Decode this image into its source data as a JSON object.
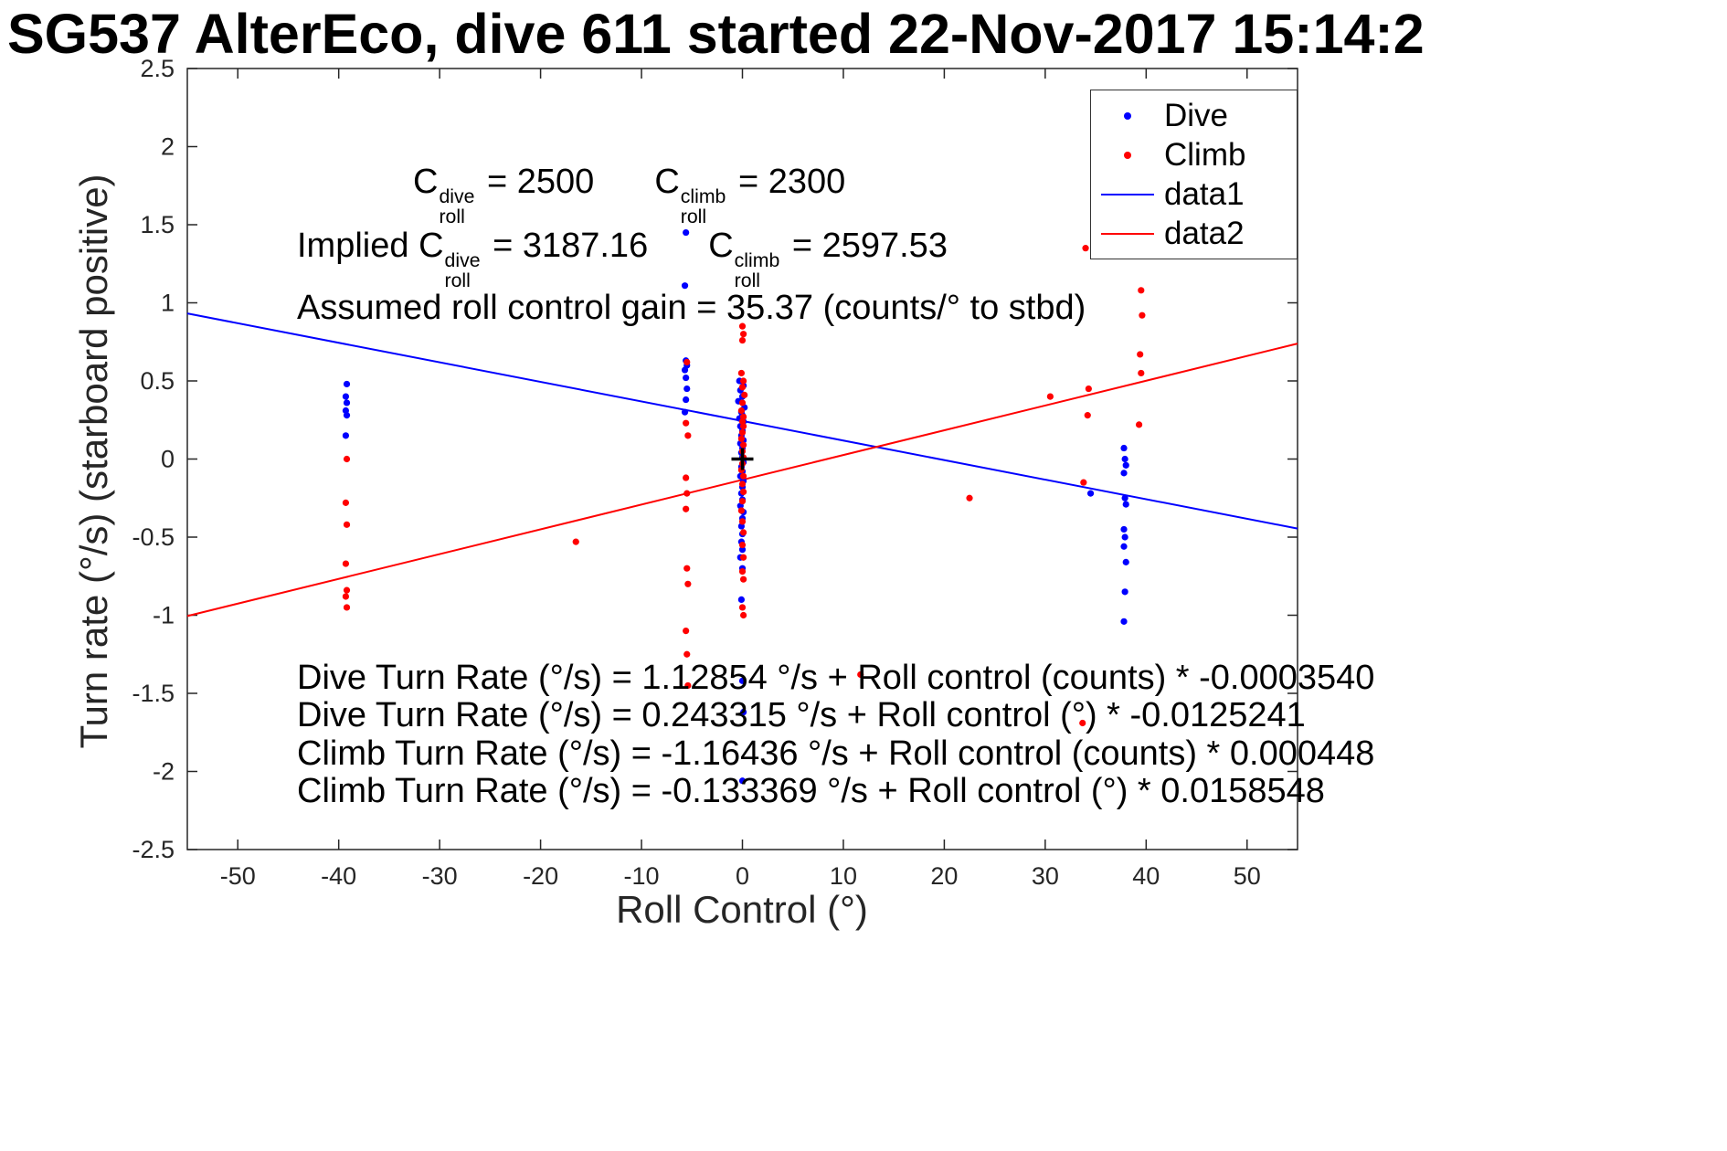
{
  "chart_data": {
    "type": "scatter",
    "title": "SG537 AlterEco, dive 611 started 22-Nov-2017 15:14:2",
    "xlabel": "Roll Control (°)",
    "ylabel": "Turn rate (°/s) (starboard positive)",
    "xlim": [
      -55,
      55
    ],
    "ylim": [
      -2.5,
      2.5
    ],
    "xticks": [
      -50,
      -40,
      -30,
      -20,
      -10,
      0,
      10,
      20,
      30,
      40,
      50
    ],
    "yticks": [
      -2.5,
      -2,
      -1.5,
      -1,
      -0.5,
      0,
      0.5,
      1,
      1.5,
      2,
      2.5
    ],
    "grid": false,
    "legend": {
      "position": "top-right",
      "items": [
        {
          "label": "Dive",
          "marker": "dot",
          "color": "#0000ff"
        },
        {
          "label": "Climb",
          "marker": "dot",
          "color": "#ff0000"
        },
        {
          "label": "data1",
          "marker": "line",
          "color": "#0000ff"
        },
        {
          "label": "data2",
          "marker": "line",
          "color": "#ff0000"
        }
      ]
    },
    "origin_marker": {
      "x": 0,
      "y": 0,
      "symbol": "+",
      "color": "#000000"
    },
    "series": [
      {
        "name": "Dive",
        "type": "scatter",
        "color": "#0000ff",
        "points": [
          [
            -39.2,
            0.48
          ],
          [
            -39.3,
            0.4
          ],
          [
            -39.2,
            0.36
          ],
          [
            -39.3,
            0.31
          ],
          [
            -39.2,
            0.28
          ],
          [
            -39.3,
            0.15
          ],
          [
            -5.6,
            1.45
          ],
          [
            -5.7,
            1.11
          ],
          [
            -5.6,
            0.63
          ],
          [
            -5.5,
            0.6
          ],
          [
            -5.7,
            0.57
          ],
          [
            -5.6,
            0.52
          ],
          [
            -5.5,
            0.45
          ],
          [
            -5.6,
            0.38
          ],
          [
            -5.7,
            0.3
          ],
          [
            -0.3,
            0.5
          ],
          [
            0.1,
            0.47
          ],
          [
            -0.2,
            0.44
          ],
          [
            0.0,
            0.4
          ],
          [
            -0.4,
            0.37
          ],
          [
            0.2,
            0.33
          ],
          [
            -0.1,
            0.3
          ],
          [
            0.0,
            0.28
          ],
          [
            -0.3,
            0.26
          ],
          [
            0.1,
            0.24
          ],
          [
            -0.2,
            0.21
          ],
          [
            0.0,
            0.18
          ],
          [
            -0.1,
            0.15
          ],
          [
            0.1,
            0.12
          ],
          [
            -0.2,
            0.1
          ],
          [
            0.0,
            0.07
          ],
          [
            -0.1,
            0.04
          ],
          [
            0.0,
            0.01
          ],
          [
            0.1,
            -0.02
          ],
          [
            -0.1,
            -0.05
          ],
          [
            0.0,
            -0.08
          ],
          [
            -0.2,
            -0.11
          ],
          [
            0.1,
            -0.14
          ],
          [
            0.0,
            -0.18
          ],
          [
            -0.1,
            -0.22
          ],
          [
            0.0,
            -0.26
          ],
          [
            -0.2,
            -0.3
          ],
          [
            0.1,
            -0.34
          ],
          [
            0.0,
            -0.38
          ],
          [
            -0.1,
            -0.43
          ],
          [
            0.0,
            -0.48
          ],
          [
            -0.1,
            -0.53
          ],
          [
            0.0,
            -0.58
          ],
          [
            -0.2,
            -0.63
          ],
          [
            0.0,
            -0.7
          ],
          [
            -0.1,
            -0.9
          ],
          [
            0.0,
            -1.42
          ],
          [
            0.1,
            -1.62
          ],
          [
            0.0,
            -2.06
          ],
          [
            34.5,
            -0.22
          ],
          [
            37.8,
            0.07
          ],
          [
            37.9,
            0.0
          ],
          [
            38.0,
            -0.04
          ],
          [
            37.8,
            -0.09
          ],
          [
            37.9,
            -0.25
          ],
          [
            38.0,
            -0.29
          ],
          [
            37.8,
            -0.45
          ],
          [
            37.9,
            -0.5
          ],
          [
            37.8,
            -0.56
          ],
          [
            38.0,
            -0.66
          ],
          [
            37.9,
            -0.85
          ],
          [
            37.8,
            -1.04
          ]
        ]
      },
      {
        "name": "Climb",
        "type": "scatter",
        "color": "#ff0000",
        "points": [
          [
            -39.2,
            0.0
          ],
          [
            -39.3,
            -0.28
          ],
          [
            -39.2,
            -0.42
          ],
          [
            -39.3,
            -0.67
          ],
          [
            -39.2,
            -0.84
          ],
          [
            -39.3,
            -0.88
          ],
          [
            -39.2,
            -0.95
          ],
          [
            -16.5,
            -0.53
          ],
          [
            -5.5,
            0.62
          ],
          [
            -5.6,
            0.23
          ],
          [
            -5.4,
            0.15
          ],
          [
            -5.6,
            -0.12
          ],
          [
            -5.5,
            -0.22
          ],
          [
            -5.6,
            -0.32
          ],
          [
            -5.5,
            -0.7
          ],
          [
            -5.4,
            -0.8
          ],
          [
            -5.6,
            -1.1
          ],
          [
            -5.5,
            -1.25
          ],
          [
            -5.4,
            -1.45
          ],
          [
            0.0,
            0.85
          ],
          [
            0.1,
            0.8
          ],
          [
            0.0,
            0.76
          ],
          [
            -0.1,
            0.55
          ],
          [
            0.1,
            0.5
          ],
          [
            0.0,
            0.46
          ],
          [
            0.2,
            0.41
          ],
          [
            0.0,
            0.36
          ],
          [
            -0.1,
            0.31
          ],
          [
            0.1,
            0.27
          ],
          [
            0.0,
            0.24
          ],
          [
            0.1,
            0.21
          ],
          [
            0.0,
            0.17
          ],
          [
            -0.1,
            0.13
          ],
          [
            0.1,
            0.09
          ],
          [
            0.0,
            0.05
          ],
          [
            0.1,
            0.01
          ],
          [
            0.0,
            -0.03
          ],
          [
            -0.1,
            -0.07
          ],
          [
            0.1,
            -0.11
          ],
          [
            0.0,
            -0.16
          ],
          [
            0.1,
            -0.21
          ],
          [
            0.0,
            -0.27
          ],
          [
            -0.1,
            -0.33
          ],
          [
            0.0,
            -0.4
          ],
          [
            0.1,
            -0.47
          ],
          [
            0.0,
            -0.55
          ],
          [
            0.1,
            -0.63
          ],
          [
            0.0,
            -0.72
          ],
          [
            0.1,
            -0.77
          ],
          [
            0.0,
            -0.95
          ],
          [
            0.1,
            -1.0
          ],
          [
            11.7,
            -1.38
          ],
          [
            22.5,
            -0.25
          ],
          [
            30.5,
            0.4
          ],
          [
            34.0,
            1.35
          ],
          [
            34.3,
            0.45
          ],
          [
            34.2,
            0.28
          ],
          [
            33.8,
            -0.15
          ],
          [
            33.7,
            -1.69
          ],
          [
            39.5,
            1.08
          ],
          [
            39.6,
            0.92
          ],
          [
            39.4,
            0.67
          ],
          [
            39.5,
            0.55
          ],
          [
            39.3,
            0.22
          ]
        ]
      },
      {
        "name": "data1",
        "type": "line",
        "color": "#0000ff",
        "x": [
          -55,
          55
        ],
        "y": [
          0.932,
          -0.445
        ],
        "equation": "y = 0.243315 + x * -0.0125241"
      },
      {
        "name": "data2",
        "type": "line",
        "color": "#ff0000",
        "x": [
          -55,
          55
        ],
        "y": [
          -1.005,
          0.739
        ],
        "equation": "y = -0.133369 + x * 0.0158548"
      }
    ],
    "annotations": {
      "row1": {
        "t1": "C",
        "sup1": "dive",
        "sub1": "roll",
        "r1": " = 2500",
        "t2": "C",
        "sup2": "climb",
        "sub2": "roll",
        "r2": " = 2300"
      },
      "row2": {
        "lead": "Implied ",
        "t1": "C",
        "sup1": "dive",
        "sub1": "roll",
        "r1": " = 3187.16",
        "t2": "C",
        "sup2": "climb",
        "sub2": "roll",
        "r2": " = 2597.53"
      },
      "row3": "Assumed roll control gain = 35.37 (counts/° to stbd)",
      "equations": [
        "Dive Turn Rate (°/s) = 1.12854 °/s + Roll control (counts) * -0.0003540",
        "Dive Turn Rate (°/s) = 0.243315 °/s + Roll control (°) * -0.0125241",
        "Climb Turn Rate (°/s) = -1.16436 °/s + Roll control (counts) * 0.000448",
        "Climb Turn Rate (°/s) = -0.133369 °/s + Roll control (°) * 0.0158548"
      ]
    }
  }
}
